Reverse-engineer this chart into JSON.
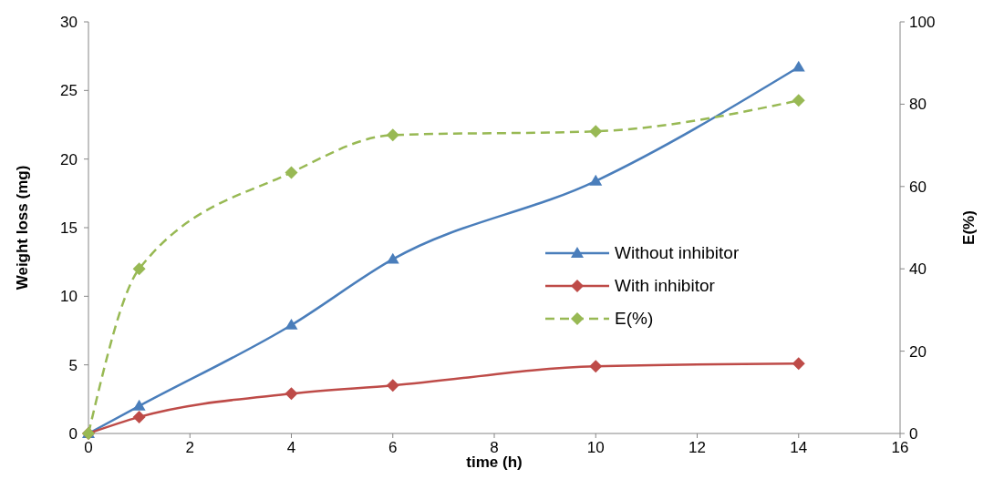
{
  "chart_data": {
    "type": "line",
    "xlabel": "time (h)",
    "ylabel": "Weight loss (mg)",
    "y2label": "E(%)",
    "x": [
      0,
      1,
      4,
      6,
      10,
      14
    ],
    "xlim": [
      0,
      16
    ],
    "xticks": [
      0,
      2,
      4,
      6,
      8,
      10,
      12,
      14,
      16
    ],
    "ylim": [
      0,
      30
    ],
    "yticks": [
      0,
      5,
      10,
      15,
      20,
      25,
      30
    ],
    "y2lim": [
      0,
      100
    ],
    "y2ticks": [
      0,
      20,
      40,
      60,
      80,
      100
    ],
    "grid": false,
    "legend": "right",
    "series": [
      {
        "name": "Without inhibitor",
        "color": "#4a7ebb",
        "marker": "triangle",
        "line_style": "solid",
        "values": [
          0,
          2.0,
          7.9,
          12.7,
          18.4,
          26.7
        ]
      },
      {
        "name": "With inhibitor",
        "color": "#be4b48",
        "marker": "diamond",
        "line_style": "solid",
        "values": [
          0,
          1.2,
          2.9,
          3.5,
          4.9,
          5.1
        ]
      },
      {
        "name": "E(%)",
        "color": "#98b954",
        "marker": "diamond",
        "line_style": "dashed",
        "axis": "y2",
        "values": [
          0,
          40,
          63.4,
          72.5,
          73.4,
          80.9
        ]
      }
    ]
  }
}
